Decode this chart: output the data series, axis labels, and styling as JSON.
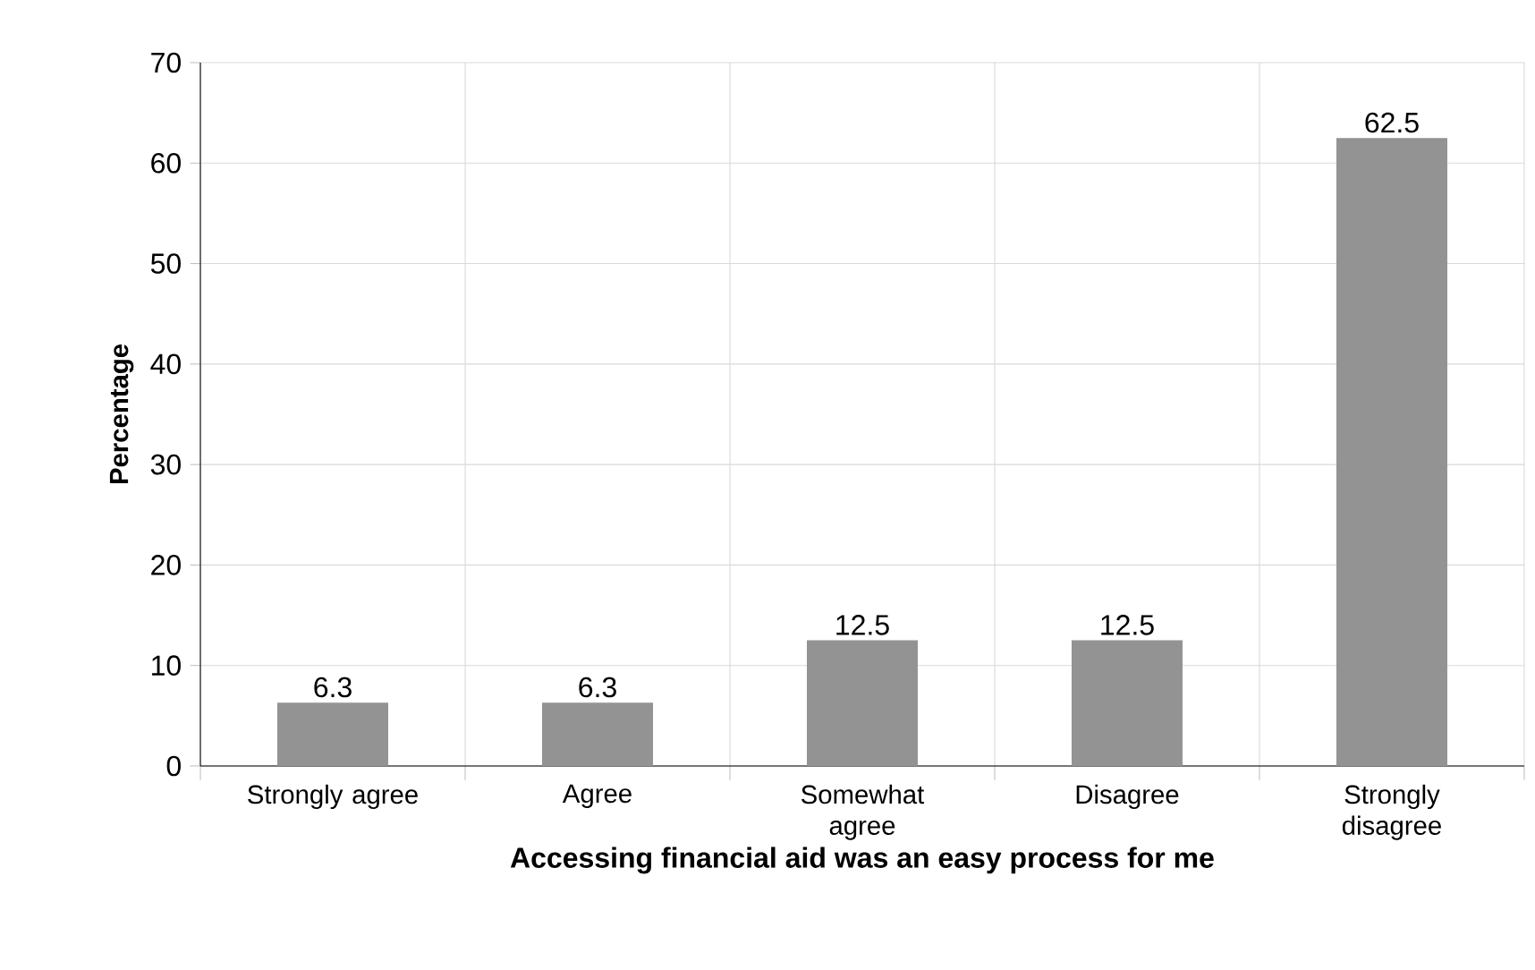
{
  "chart_data": {
    "type": "bar",
    "xlabel": "Accessing financial aid was an easy process for me",
    "ylabel": "Percentage",
    "categories": [
      "Strongly agree",
      "Agree",
      "Somewhat agree",
      "Disagree",
      "Strongly disagree"
    ],
    "values": [
      6.3,
      6.3,
      12.5,
      12.5,
      62.5
    ],
    "color": "#939393",
    "ylim": [
      0,
      70
    ],
    "yticks": [
      0,
      10,
      20,
      30,
      40,
      50,
      60,
      70
    ],
    "grid": true,
    "data_labels": true
  }
}
